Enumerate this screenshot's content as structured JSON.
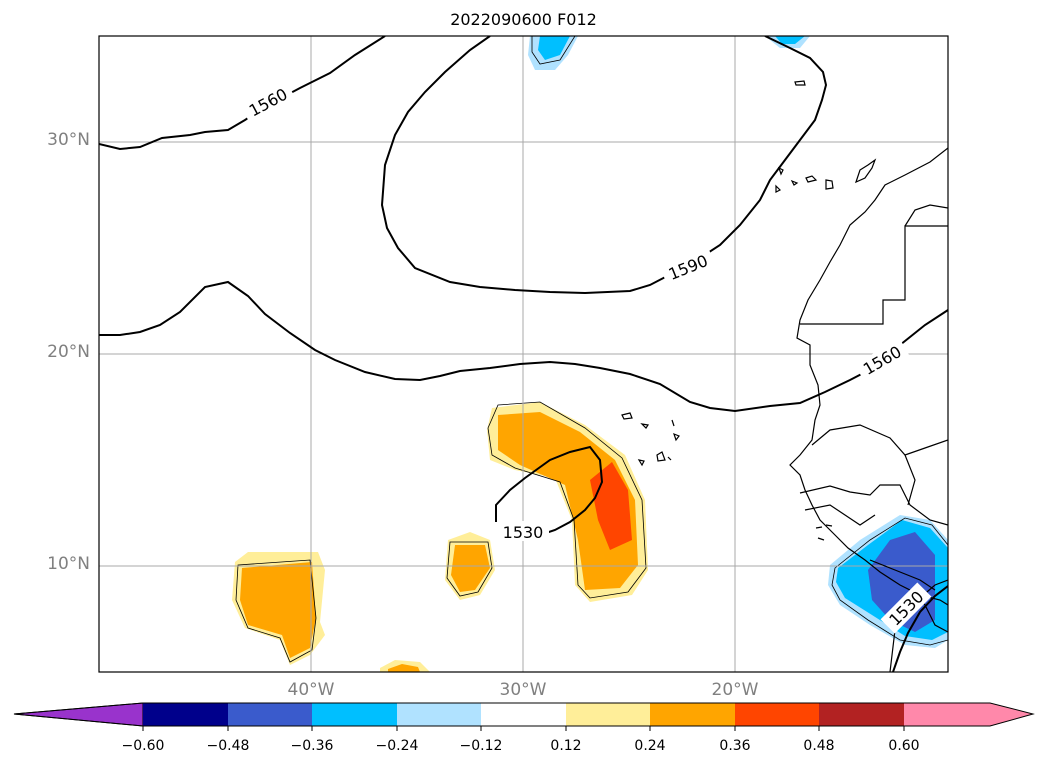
{
  "title": "2022090600 F012",
  "map": {
    "lat_labels": [
      "30°N",
      "20°N",
      "10°N"
    ],
    "lon_labels": [
      "40°W",
      "30°W",
      "20°W"
    ],
    "contour_labels": [
      "1560",
      "1590",
      "1560",
      "1530",
      "1530"
    ],
    "colors": {
      "pos_low": "#ffee99",
      "pos_mid": "#ffa500",
      "pos_high": "#ff4500",
      "neg_low": "#b0e2ff",
      "neg_mid": "#00bfff",
      "neg_high": "#3a5bcc"
    }
  },
  "colorbar": {
    "ticks": [
      "−0.60",
      "−0.48",
      "−0.36",
      "−0.24",
      "−0.12",
      "0.12",
      "0.24",
      "0.36",
      "0.48",
      "0.60"
    ],
    "colors": [
      "#9933cc",
      "#00008b",
      "#3a5bcc",
      "#00bfff",
      "#b0e2ff",
      "#ffffff",
      "#ffee99",
      "#ffa500",
      "#ff4500",
      "#b22222",
      "#ff88aa"
    ]
  }
}
